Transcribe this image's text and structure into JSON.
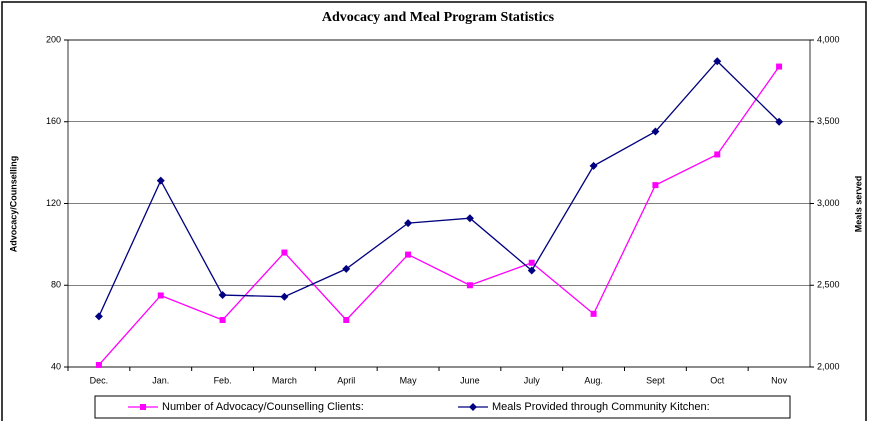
{
  "chart_data": {
    "type": "line",
    "title": "Advocacy and Meal Program Statistics",
    "y_label": "Advocacy/Counselling",
    "y2_label": "Meals served",
    "categories": [
      "Dec.",
      "Jan.",
      "Feb.",
      "March",
      "April",
      "May",
      "June",
      "July",
      "Aug.",
      "Sept",
      "Oct",
      "Nov"
    ],
    "series": [
      {
        "name": "Number of Advocacy/Counselling Clients:",
        "color": "#ff00ff",
        "marker": "square",
        "values": [
          41,
          75,
          63,
          96,
          63,
          95,
          80,
          91,
          66,
          129,
          144,
          187
        ]
      },
      {
        "name": "Meals Provided through Community Kitchen:",
        "color": "#000080",
        "marker": "diamond",
        "axis": "y2",
        "values": [
          2310,
          3140,
          2440,
          2430,
          2600,
          2880,
          2910,
          2590,
          3230,
          3440,
          3870,
          3500
        ]
      }
    ],
    "ylim": [
      40,
      200
    ],
    "yticks": [
      40,
      80,
      120,
      160,
      200
    ],
    "y2lim": [
      2000,
      4000
    ],
    "y2ticks": [
      {
        "value": 2000,
        "label": "2,000"
      },
      {
        "value": 2500,
        "label": "2,500"
      },
      {
        "value": 3000,
        "label": "3,000"
      },
      {
        "value": 3500,
        "label": "3,500"
      },
      {
        "value": 4000,
        "label": "4,000"
      }
    ],
    "grid": true,
    "legend": "bottom"
  }
}
